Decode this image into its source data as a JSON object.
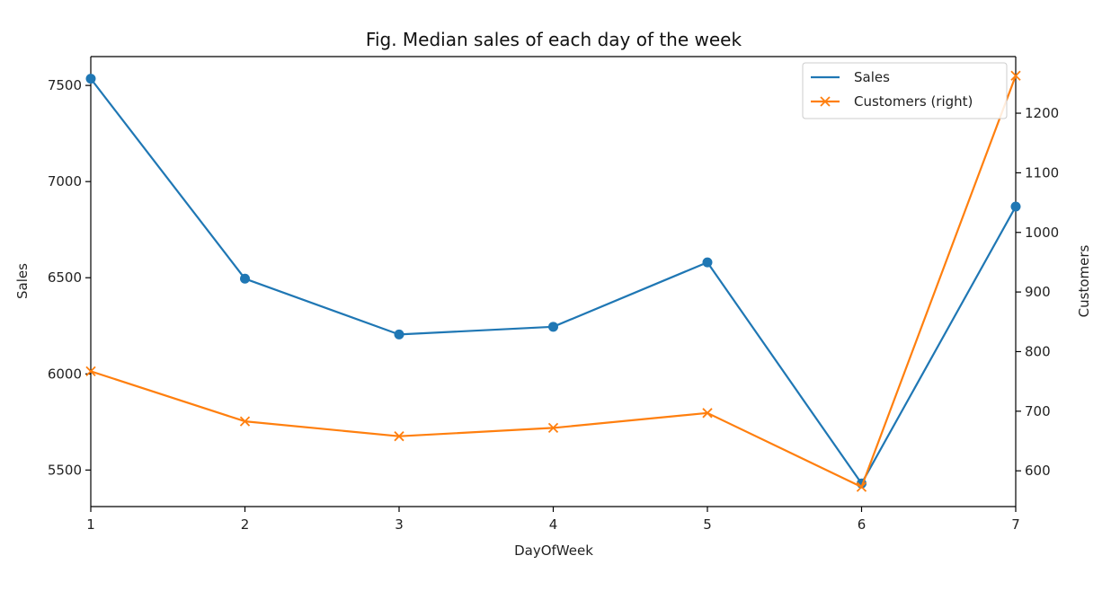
{
  "chart_data": {
    "type": "line",
    "title": "Fig. Median sales of each day of the week",
    "xlabel": "DayOfWeek",
    "ylabel": "Sales",
    "y2label": "Customers",
    "x": [
      1,
      2,
      3,
      4,
      5,
      6,
      7
    ],
    "xlim": [
      1,
      7
    ],
    "ylim": [
      5310,
      7650
    ],
    "y2lim": [
      540,
      1295
    ],
    "xticks": [
      "1",
      "2",
      "3",
      "4",
      "5",
      "6",
      "7"
    ],
    "yticks": [
      5500,
      6000,
      6500,
      7000,
      7500
    ],
    "y2ticks": [
      600,
      700,
      800,
      900,
      1000,
      1100,
      1200
    ],
    "grid": false,
    "legend_position": "top-right",
    "series": [
      {
        "name": "Sales",
        "axis": "left",
        "color": "#1f77b4",
        "marker": "circle",
        "values": [
          7535,
          6495,
          6205,
          6245,
          6580,
          5430,
          6870
        ]
      },
      {
        "name": "Customers (right)",
        "axis": "right",
        "color": "#ff7f0e",
        "marker": "x",
        "values": [
          767,
          683,
          658,
          672,
          697,
          573,
          1263
        ]
      }
    ]
  }
}
